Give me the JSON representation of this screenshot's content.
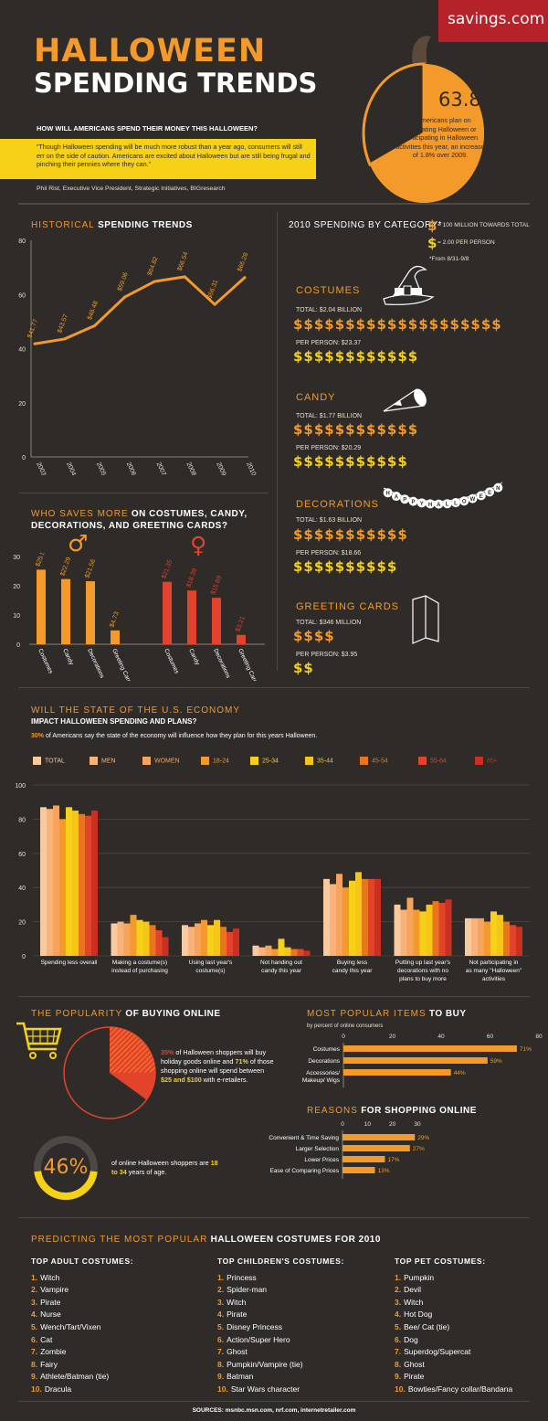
{
  "brand": "savings.com",
  "title": {
    "line1": "HALLOWEEN",
    "line2": "SPENDING TRENDS"
  },
  "question": "HOW WILL AMERICANS SPEND THEIR MONEY THIS HALLOWEEN?",
  "quote": "“Though Halloween spending will be much more robust than a year ago, consumers will still err on the side of caution. Americans are excited about Halloween but are still being frugal and pinching their pennies where they can.”",
  "quote_author": "Phil Rist, Executive Vice President, Strategic Initiatives, BIGresearch",
  "pumpkin": {
    "percent": "63.8%",
    "text": "of Americans plan on celebrating Halloween or participating in Halloween activities this year, an increase of 1.8% over 2009."
  },
  "colors": {
    "background": "#2e2b28",
    "orange": "#f39a2a",
    "yellow": "#f7d117",
    "red": "#e3432b",
    "brand_red": "#b5222a",
    "quote_bg": "#f7d117"
  },
  "historical": {
    "title_hl": "HISTORICAL",
    "title_rest": "SPENDING TRENDS",
    "chart_data": {
      "type": "line",
      "x": [
        "2003",
        "2004",
        "2005",
        "2006",
        "2007",
        "2008",
        "2009",
        "2010"
      ],
      "values": [
        41.77,
        43.57,
        48.48,
        59.06,
        64.82,
        66.54,
        56.31,
        66.28
      ],
      "labels": [
        "$41.77",
        "$43.57",
        "$48.48",
        "$59.06",
        "$64.82",
        "$66.54",
        "$56.31",
        "$66.28"
      ],
      "ylim": [
        0,
        80
      ],
      "yticks": [
        "0",
        "20",
        "40",
        "60",
        "80"
      ],
      "color": "#f39a2a"
    }
  },
  "category": {
    "title": "2010 SPENDING BY CATEGORY*",
    "legend_big": "= 100 MILLION TOWARDS TOTAL",
    "legend_small": "= 2.00 PER PERSON",
    "footnote": "*From 8/31-9/8",
    "items": [
      {
        "name": "COSTUMES",
        "total": "TOTAL: $2.04 BILLION",
        "per": "PER PERSON: $23.37",
        "icon": "witch-hat-icon"
      },
      {
        "name": "CANDY",
        "total": "TOTAL: $1.77 BILLION",
        "per": "PER PERSON: $20.29",
        "icon": "candy-corn-icon"
      },
      {
        "name": "DECORATIONS",
        "total": "TOTAL: $1.63 BILLION",
        "per": "PER PERSON: $18.66",
        "icon": "happy-halloween-banner-icon"
      },
      {
        "name": "GREETING CARDS",
        "total": "TOTAL: $346 MILLION",
        "per": "PER PERSON: $3.95",
        "icon": "greeting-card-icon"
      }
    ],
    "banner_text": "HAPPY HALLOWEEN",
    "dollar_glyph": "$"
  },
  "saves": {
    "title_hl": "WHO SAVES MORE",
    "title_rest": "ON COSTUMES, CANDY, DECORATIONS, AND GREETING CARDS?",
    "male_symbol": "♂",
    "female_symbol": "♀",
    "chart_data": {
      "type": "bar",
      "categories": [
        "Costumes",
        "Candy",
        "Decorations",
        "Greeting Cards"
      ],
      "series": [
        {
          "values": [
            25.5,
            22.29,
            21.56,
            4.73
          ],
          "labels": [
            "$25.50",
            "$22.29",
            "$21.56",
            "$4.73"
          ],
          "color": "#f39a2a"
        },
        {
          "values": [
            21.35,
            18.39,
            15.89,
            3.21
          ],
          "labels": [
            "$21.35",
            "$18.39",
            "$15.89",
            "$3.21"
          ],
          "color": "#e3432b"
        }
      ],
      "ylim": [
        0,
        30
      ],
      "yticks": [
        "0",
        "10",
        "20",
        "30"
      ]
    }
  },
  "economy": {
    "title_line1": "WILL THE STATE OF THE U.S. ECONOMY",
    "title_line2": "IMPACT HALLOWEEN SPENDING AND PLANS?",
    "stat_pct": "30%",
    "stat_text": "of Americans say the state of the economy will influence how they plan for this years Halloween.",
    "chart_data": {
      "type": "bar",
      "categories": [
        "Spending less overall",
        "Making a costume(s) instead of purchasing",
        "Using last year's costume(s)",
        "Not handing out candy this year",
        "Buying less candy this year",
        "Putting up last year's decorations with no plans to buy more",
        "Not participating in as many \"Halloween\" activities"
      ],
      "category_lines": [
        [
          "Spending less overall"
        ],
        [
          "Making a costume(s)",
          "instead of purchasing"
        ],
        [
          "Using last year's",
          "costume(s)"
        ],
        [
          "Not handing out",
          "candy this year"
        ],
        [
          "Buying less",
          "candy this year"
        ],
        [
          "Putting up last year's",
          "decorations with no",
          "plans to buy more"
        ],
        [
          "Not participating in",
          "as many \"Halloween\"",
          "activities"
        ]
      ],
      "series": [
        {
          "name": "TOTAL",
          "color": "#f9c9a0",
          "values": [
            87,
            19,
            18,
            6,
            45,
            30,
            22
          ]
        },
        {
          "name": "MEN",
          "color": "#f8b27a",
          "values": [
            86,
            20,
            17,
            5,
            42,
            27,
            22
          ]
        },
        {
          "name": "WOMEN",
          "color": "#f6a45c",
          "values": [
            88,
            19,
            19,
            6,
            48,
            34,
            22
          ]
        },
        {
          "name": "18-24",
          "color": "#f39a2a",
          "values": [
            80,
            24,
            21,
            4,
            40,
            27,
            20
          ]
        },
        {
          "name": "25-34",
          "color": "#f7d117",
          "values": [
            87,
            21,
            18,
            10,
            44,
            26,
            26
          ]
        },
        {
          "name": "35-44",
          "color": "#f5c518",
          "values": [
            85,
            20,
            21,
            5,
            49,
            30,
            24
          ]
        },
        {
          "name": "45-54",
          "color": "#e9751f",
          "values": [
            83,
            18,
            17,
            4,
            45,
            32,
            20
          ]
        },
        {
          "name": "55-64",
          "color": "#e3432b",
          "values": [
            82,
            15,
            14,
            4,
            45,
            31,
            18
          ]
        },
        {
          "name": "65+",
          "color": "#c9301f",
          "values": [
            85,
            11,
            16,
            3,
            45,
            33,
            17
          ]
        }
      ],
      "ylim": [
        0,
        100
      ],
      "yticks": [
        "0",
        "20",
        "40",
        "60",
        "80",
        "100"
      ]
    }
  },
  "online": {
    "title_hl": "THE POPULARITY",
    "title_rest": "OF BUYING ONLINE",
    "pie_pct1": "35%",
    "pie_text1": "of Halloween shoppers will buy holiday goods online and",
    "pie_pct2": "71%",
    "pie_text2": "of those shopping online will spend between",
    "pie_range": "$25 and $100",
    "pie_text3": "with e-retailers.",
    "pie_values": [
      35,
      71
    ],
    "age_pct": "46%",
    "age_value": 46,
    "age_text1": "of online Halloween shoppers are",
    "age_range": "18 to 34",
    "age_text2": "years of age."
  },
  "popular_items": {
    "title_hl": "MOST POPULAR ITEMS",
    "title_rest": "TO BUY",
    "subtitle": "by percent of online consumers",
    "chart_data": {
      "type": "bar",
      "categories": [
        "Costumes",
        "Decorations",
        "Accessories/ Makeup/ Wigs"
      ],
      "category_lines": [
        [
          "Costumes"
        ],
        [
          "Decorations"
        ],
        [
          "Accessories/",
          "Makeup/ Wigs"
        ]
      ],
      "values": [
        71,
        59,
        44
      ],
      "labels": [
        "71%",
        "59%",
        "44%"
      ],
      "xlim": [
        0,
        80
      ],
      "xticks": [
        "0",
        "20",
        "40",
        "60",
        "80"
      ]
    }
  },
  "reasons": {
    "title_hl": "REASONS",
    "title_rest": "FOR SHOPPING ONLINE",
    "chart_data": {
      "type": "bar",
      "categories": [
        "Convenient & Time Saving",
        "Larger Selection",
        "Lower Prices",
        "Ease of Comparing Prices"
      ],
      "values": [
        29,
        27,
        17,
        13
      ],
      "labels": [
        "29%",
        "27%",
        "17%",
        "13%"
      ],
      "xlim": [
        0,
        30
      ],
      "xticks": [
        "0",
        "10",
        "20",
        "30"
      ]
    }
  },
  "predict": {
    "title_hl": "PREDICTING THE MOST POPULAR",
    "title_rest": "HALLOWEEN COSTUMES FOR 2010",
    "adult": {
      "heading": "TOP ADULT COSTUMES:",
      "items": [
        "Witch",
        "Vampire",
        "Pirate",
        "Nurse",
        "Wench/Tart/Vixen",
        "Cat",
        "Zombie",
        "Fairy",
        "Athlete/Batman (tie)",
        "Dracula"
      ]
    },
    "children": {
      "heading": "TOP CHILDREN'S COSTUMES:",
      "items": [
        "Princess",
        "Spider-man",
        "Witch",
        "Pirate",
        "Disney Princess",
        "Action/Super Hero",
        "Ghost",
        "Pumpkin/Vampire (tie)",
        "Batman",
        "Star Wars character"
      ]
    },
    "pet": {
      "heading": "TOP PET COSTUMES:",
      "items": [
        "Pumpkin",
        "Devil",
        "Witch",
        "Hot Dog",
        "Bee/ Cat (tie)",
        "Dog",
        "Superdog/Supercat",
        "Ghost",
        "Pirate",
        "Bowties/Fancy collar/Bandana"
      ]
    },
    "numbers": [
      "1.",
      "2.",
      "3.",
      "4.",
      "5.",
      "6.",
      "7.",
      "8.",
      "9.",
      "10."
    ]
  },
  "sources": "SOURCES: msnbc.msn.com, nrf.com, internetretailer.com"
}
